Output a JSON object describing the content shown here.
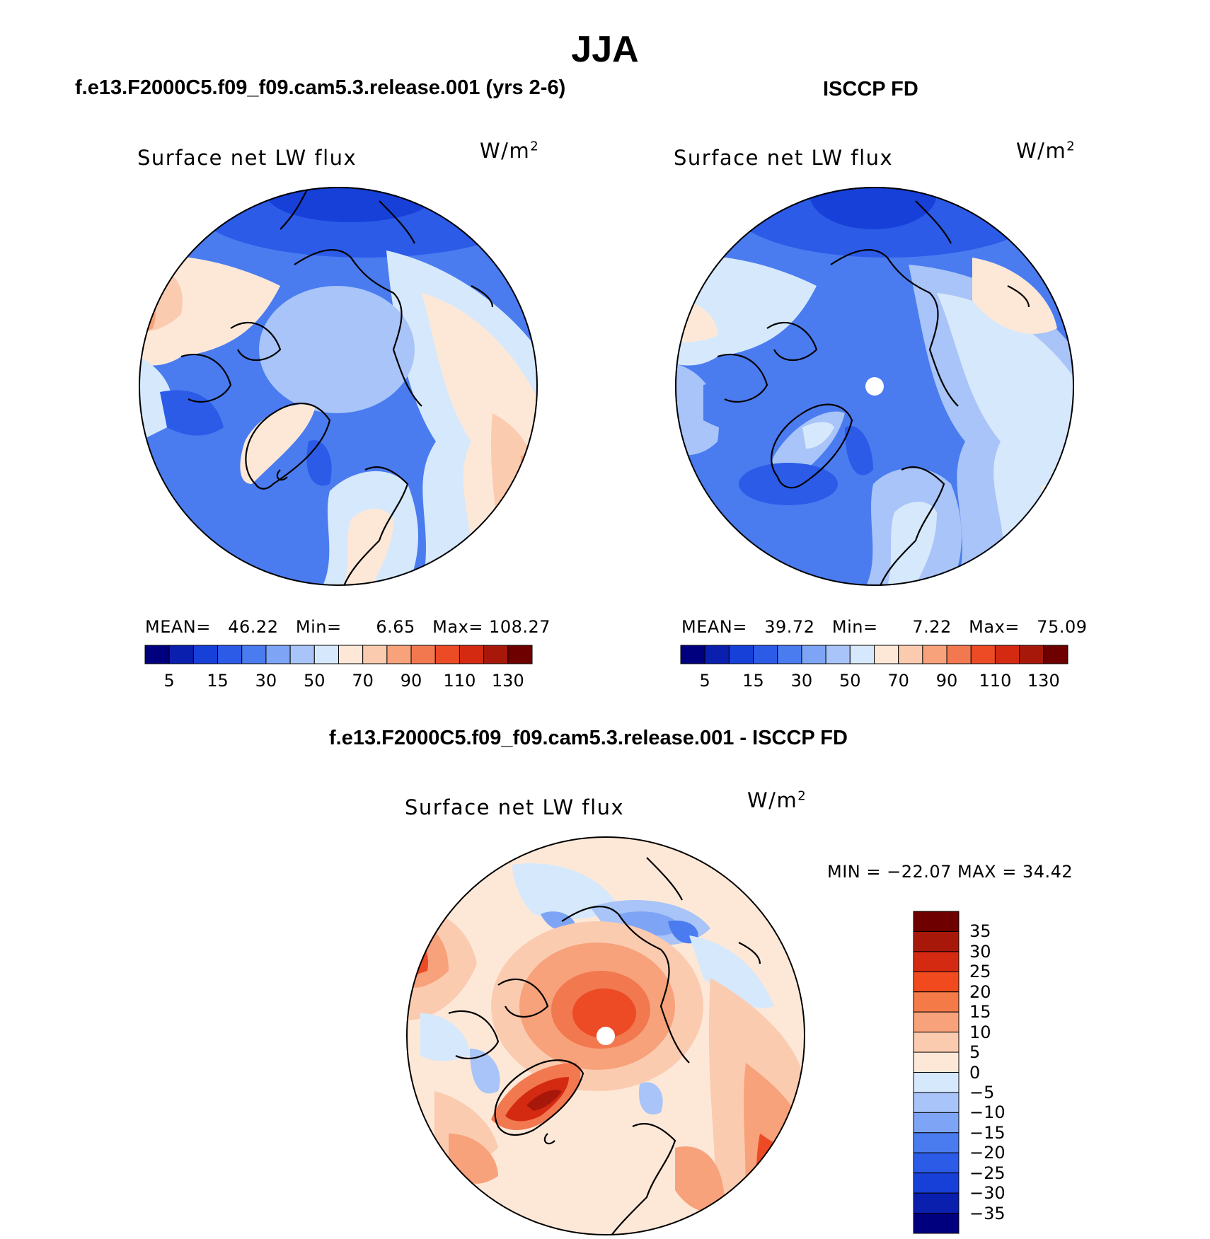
{
  "title": "JJA",
  "panels": [
    {
      "case_title": "f.e13.F2000C5.f09_f09.cam5.3.release.001 (yrs 2-6)",
      "variable": "Surface net LW flux",
      "units": "W/m",
      "units_exp": "2",
      "stats": {
        "mean_label": "MEAN=",
        "mean": "46.22",
        "min_label": "Min=",
        "min": "6.65",
        "max_label": "Max=",
        "max": "108.27"
      }
    },
    {
      "case_title": "ISCCP FD",
      "variable": "Surface net LW flux",
      "units": "W/m",
      "units_exp": "2",
      "stats": {
        "mean_label": "MEAN=",
        "mean": "39.72",
        "min_label": "Min=",
        "min": "7.22",
        "max_label": "Max=",
        "max": "75.09"
      }
    },
    {
      "case_title": "f.e13.F2000C5.f09_f09.cam5.3.release.001 - ISCCP FD",
      "variable": "Surface net LW flux",
      "units": "W/m",
      "units_exp": "2",
      "stats": {
        "minmax": "MIN = −22.07 MAX =  34.42"
      }
    }
  ],
  "colorbar_horizontal": {
    "colors": [
      "#00007f",
      "#0a1fae",
      "#1640d8",
      "#2c5be8",
      "#4a7cf0",
      "#7ea4f5",
      "#a8c4f8",
      "#d6e8fb",
      "#fde8d8",
      "#fbcbb0",
      "#f7a27a",
      "#f27850",
      "#ec4b25",
      "#d42a12",
      "#a8180a",
      "#6e0000"
    ],
    "tick_labels": [
      "5",
      "15",
      "30",
      "50",
      "70",
      "90",
      "110",
      "130"
    ]
  },
  "colorbar_vertical": {
    "colors": [
      "#6e0000",
      "#a8180a",
      "#d42a12",
      "#f04a1e",
      "#f47a48",
      "#f7a27a",
      "#fbcbb0",
      "#fde8d8",
      "#d6e8fb",
      "#a8c4f8",
      "#7ea4f5",
      "#4a7cf0",
      "#2c5be8",
      "#1640d8",
      "#0a1fae",
      "#00007f"
    ],
    "tick_labels": [
      "35",
      "30",
      "25",
      "20",
      "15",
      "10",
      "5",
      "0",
      "−5",
      "−10",
      "−15",
      "−20",
      "−25",
      "−30",
      "−35"
    ]
  }
}
